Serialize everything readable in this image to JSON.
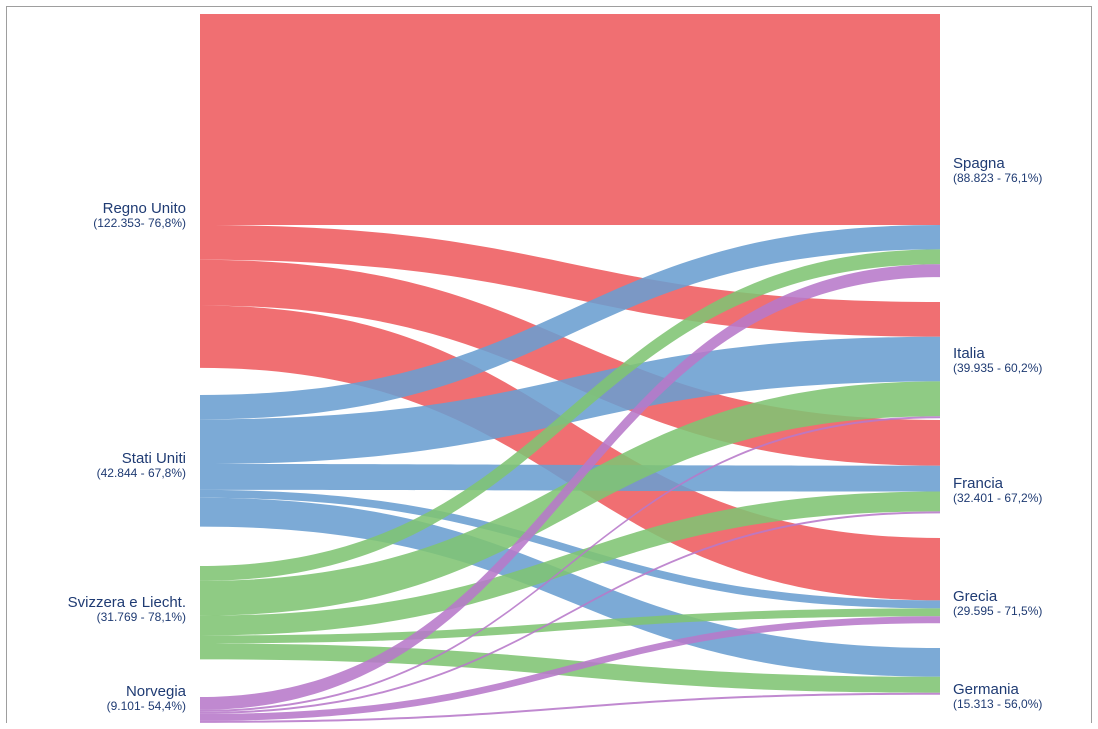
{
  "colors": {
    "Regno Unito": "#ee5b5f",
    "Stati Uniti": "#6a9ed0",
    "Svizzera e Liecht.": "#7fc473",
    "Norvegia": "#b779c9"
  },
  "sources": [
    {
      "name": "Regno Unito",
      "value_label": "(122.353- 76,8%)"
    },
    {
      "name": "Stati Uniti",
      "value_label": "(42.844 - 67,8%)"
    },
    {
      "name": "Svizzera e Liecht.",
      "value_label": "(31.769 - 78,1%)"
    },
    {
      "name": "Norvegia",
      "value_label": "(9.101- 54,4%)"
    }
  ],
  "targets": [
    {
      "name": "Spagna",
      "value_label": "(88.823 - 76,1%)"
    },
    {
      "name": "Italia",
      "value_label": "(39.935 - 60,2%)"
    },
    {
      "name": "Francia",
      "value_label": "(32.401 - 67,2%)"
    },
    {
      "name": "Grecia",
      "value_label": "(29.595 - 71,5%)"
    },
    {
      "name": "Germania",
      "value_label": "(15.313 - 56,0%)"
    }
  ],
  "chart_data": {
    "type": "sankey",
    "links": [
      {
        "source": "Regno Unito",
        "target": "Spagna",
        "value": 67582
      },
      {
        "source": "Regno Unito",
        "target": "Italia",
        "value": 11133
      },
      {
        "source": "Regno Unito",
        "target": "Francia",
        "value": 14634
      },
      {
        "source": "Regno Unito",
        "target": "Grecia",
        "value": 19994
      },
      {
        "source": "Stati Uniti",
        "target": "Spagna",
        "value": 7800
      },
      {
        "source": "Stati Uniti",
        "target": "Italia",
        "value": 14310
      },
      {
        "source": "Stati Uniti",
        "target": "Francia",
        "value": 8270
      },
      {
        "source": "Stati Uniti",
        "target": "Grecia",
        "value": 2544
      },
      {
        "source": "Stati Uniti",
        "target": "Germania",
        "value": 9226
      },
      {
        "source": "Svizzera e Liecht.",
        "target": "Spagna",
        "value": 4770
      },
      {
        "source": "Svizzera e Liecht.",
        "target": "Italia",
        "value": 11133
      },
      {
        "source": "Svizzera e Liecht.",
        "target": "Francia",
        "value": 6360
      },
      {
        "source": "Svizzera e Liecht.",
        "target": "Grecia",
        "value": 2544
      },
      {
        "source": "Svizzera e Liecht.",
        "target": "Germania",
        "value": 5088
      },
      {
        "source": "Norvegia",
        "target": "Spagna",
        "value": 4134
      },
      {
        "source": "Norvegia",
        "target": "Italia",
        "value": 636
      },
      {
        "source": "Norvegia",
        "target": "Francia",
        "value": 636
      },
      {
        "source": "Norvegia",
        "target": "Grecia",
        "value": 2226
      },
      {
        "source": "Norvegia",
        "target": "Germania",
        "value": 636
      }
    ]
  }
}
